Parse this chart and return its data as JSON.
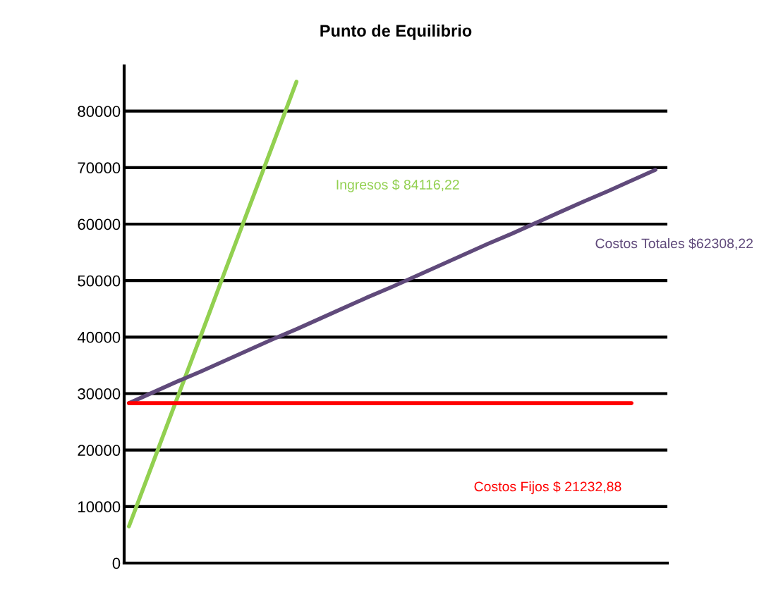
{
  "chart_data": {
    "type": "line",
    "title": "Punto de Equilibrio",
    "categories": [
      null,
      null,
      null,
      null,
      null,
      null,
      null,
      null,
      null,
      null,
      null,
      null,
      null,
      null,
      null,
      null,
      null,
      null,
      null,
      null,
      null,
      null,
      null
    ],
    "series": [
      {
        "name": "Ingresos $ 84116,22",
        "color": "#92d050",
        "values": [
          6500,
          17700,
          29000,
          40200,
          51500,
          62700,
          73900,
          85200,
          null,
          null,
          null,
          null,
          null,
          null,
          null,
          null,
          null,
          null,
          null,
          null,
          null,
          null,
          null
        ]
      },
      {
        "name": "Costos Totales $62308,22",
        "color": "#604a7b",
        "values": [
          28300,
          30200,
          32100,
          33900,
          35800,
          37700,
          39600,
          41400,
          43300,
          45200,
          47100,
          48900,
          50800,
          52700,
          54600,
          56500,
          58300,
          60200,
          62100,
          64000,
          65800,
          67700,
          69600
        ]
      },
      {
        "name": "Costos Fijos $ 21232,88",
        "color": "#ff0000",
        "values": [
          28300,
          28300,
          28300,
          28300,
          28300,
          28300,
          28300,
          28300,
          28300,
          28300,
          28300,
          28300,
          28300,
          28300,
          28300,
          28300,
          28300,
          28300,
          28300,
          28300,
          28300,
          28300,
          null
        ]
      }
    ],
    "ylim": [
      0,
      88000
    ],
    "yticks": [
      0,
      10000,
      20000,
      30000,
      40000,
      50000,
      60000,
      70000,
      80000
    ],
    "grid": "y",
    "legend": false,
    "tick_labels": "y"
  }
}
